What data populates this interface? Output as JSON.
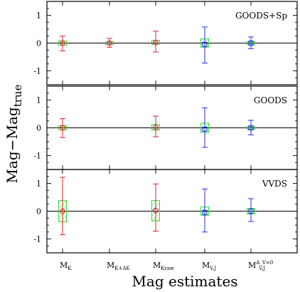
{
  "chart_data": {
    "type": "error-bar-box",
    "xlabel": "Mag estimates",
    "ylabel_main": "Mag",
    "ylabel_minus": "−",
    "ylabel_main2": "Mag",
    "ylabel_sub": "true",
    "ylim": [
      -1.5,
      1.5
    ],
    "yticks": [
      -1,
      0,
      1
    ],
    "categories": [
      {
        "main": "M",
        "sub": "K"
      },
      {
        "main": "M",
        "sub": "K+ΔK"
      },
      {
        "main": "M",
        "sub": "Kraw"
      },
      {
        "main": "M",
        "sub": "V,J"
      },
      {
        "main": "M",
        "sub": "V,J",
        "sup": "A_V=0"
      }
    ],
    "panels": [
      {
        "title": "GOODS+Sp",
        "entries": [
          {
            "cat": 0,
            "median": 0.0,
            "q1": -0.08,
            "q3": 0.08,
            "lo": -0.28,
            "hi": 0.25,
            "color": "#e0202a"
          },
          {
            "cat": 1,
            "median": 0.0,
            "q1": -0.06,
            "q3": 0.06,
            "lo": -0.15,
            "hi": 0.17,
            "color": "#e0202a"
          },
          {
            "cat": 2,
            "median": 0.02,
            "q1": -0.05,
            "q3": 0.1,
            "lo": -0.32,
            "hi": 0.43,
            "color": "#e0202a"
          },
          {
            "cat": 3,
            "median": -0.05,
            "q1": -0.15,
            "q3": 0.15,
            "lo": -0.72,
            "hi": 0.58,
            "color": "#2030e0"
          },
          {
            "cat": 4,
            "median": 0.0,
            "q1": -0.05,
            "q3": 0.05,
            "lo": -0.2,
            "hi": 0.22,
            "color": "#2030e0"
          }
        ]
      },
      {
        "title": "GOODS",
        "entries": [
          {
            "cat": 0,
            "median": 0.0,
            "q1": -0.08,
            "q3": 0.08,
            "lo": -0.35,
            "hi": 0.33,
            "color": "#e0202a"
          },
          {
            "cat": 2,
            "median": 0.02,
            "q1": -0.08,
            "q3": 0.12,
            "lo": -0.32,
            "hi": 0.42,
            "color": "#e0202a"
          },
          {
            "cat": 3,
            "median": -0.05,
            "q1": -0.17,
            "q3": 0.17,
            "lo": -0.7,
            "hi": 0.72,
            "color": "#2030e0"
          },
          {
            "cat": 4,
            "median": 0.0,
            "q1": -0.05,
            "q3": 0.05,
            "lo": -0.25,
            "hi": 0.27,
            "color": "#2030e0"
          }
        ]
      },
      {
        "title": "VVDS",
        "entries": [
          {
            "cat": 0,
            "median": 0.0,
            "q1": -0.38,
            "q3": 0.38,
            "lo": -0.85,
            "hi": 1.22,
            "color": "#e0202a"
          },
          {
            "cat": 2,
            "median": 0.02,
            "q1": -0.35,
            "q3": 0.38,
            "lo": -0.72,
            "hi": 0.98,
            "color": "#e0202a"
          },
          {
            "cat": 3,
            "median": -0.05,
            "q1": -0.15,
            "q3": 0.15,
            "lo": -0.75,
            "hi": 0.8,
            "color": "#2030e0"
          },
          {
            "cat": 4,
            "median": 0.0,
            "q1": -0.1,
            "q3": 0.1,
            "lo": -0.37,
            "hi": 0.45,
            "color": "#2030e0"
          }
        ]
      }
    ],
    "box_color": "#33dd33",
    "grid": false
  }
}
